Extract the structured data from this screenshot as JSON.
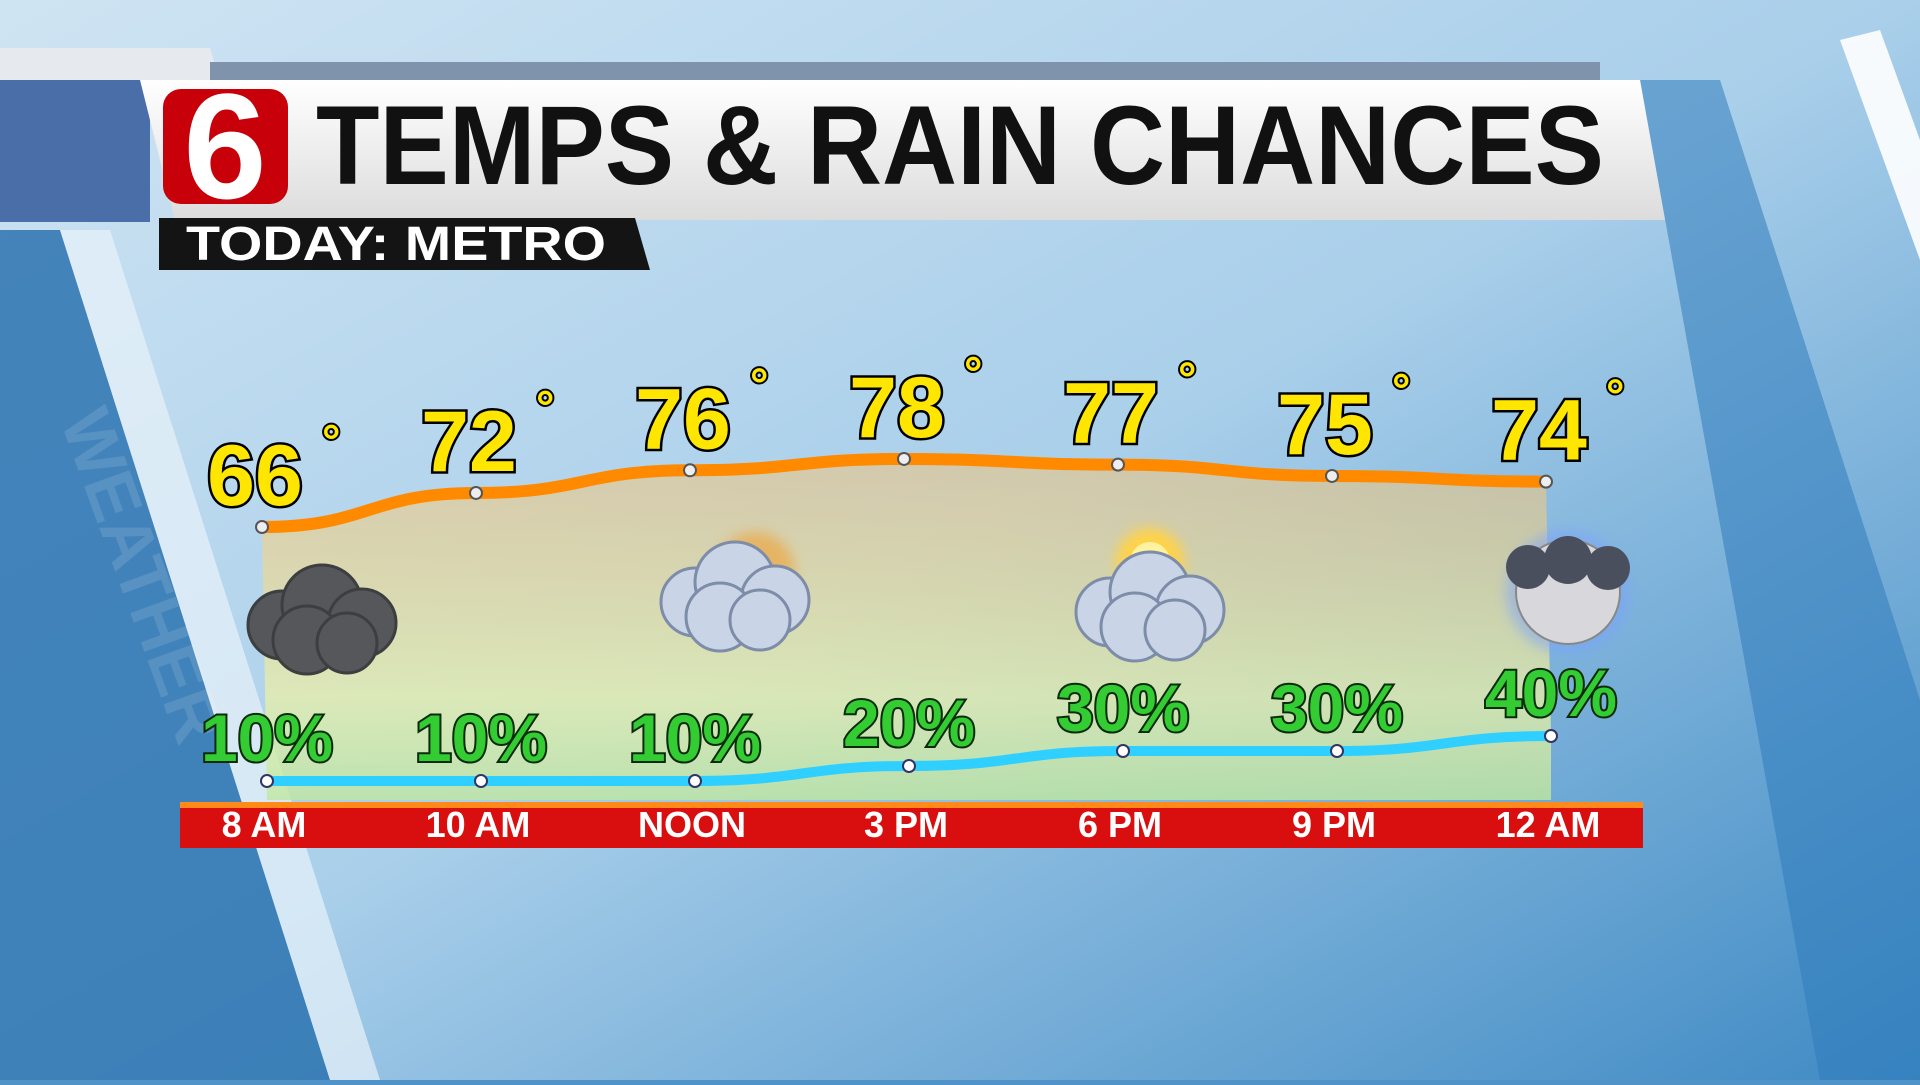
{
  "header": {
    "logo_text": "6",
    "title": "TEMPS & RAIN CHANCES",
    "subtitle": "TODAY: METRO",
    "background_watermark": "WEATHER"
  },
  "colors": {
    "logo_red": "#c8000a",
    "temp_line": "#ff8a00",
    "temp_label": "#ffe600",
    "rain_line": "#2fd0ff",
    "rain_label": "#33cc33",
    "time_bar": "#d90f0f"
  },
  "chart_data": {
    "type": "line",
    "categories": [
      "8 AM",
      "10 AM",
      "NOON",
      "3 PM",
      "6 PM",
      "9 PM",
      "12 AM"
    ],
    "series": [
      {
        "name": "Temperature",
        "unit": "°",
        "values": [
          66,
          72,
          76,
          78,
          77,
          75,
          74
        ]
      },
      {
        "name": "Rain chance",
        "unit": "%",
        "values": [
          10,
          10,
          10,
          20,
          30,
          30,
          40
        ]
      }
    ],
    "icons": [
      {
        "time": "8 AM",
        "icon": "cloudy-icon"
      },
      {
        "time": "NOON",
        "icon": "partly-cloudy-icon"
      },
      {
        "time": "6 PM",
        "icon": "partly-sunny-icon"
      },
      {
        "time": "12 AM",
        "icon": "partly-cloudy-night-icon"
      }
    ],
    "title": "TEMPS & RAIN CHANCES",
    "grid": false
  }
}
